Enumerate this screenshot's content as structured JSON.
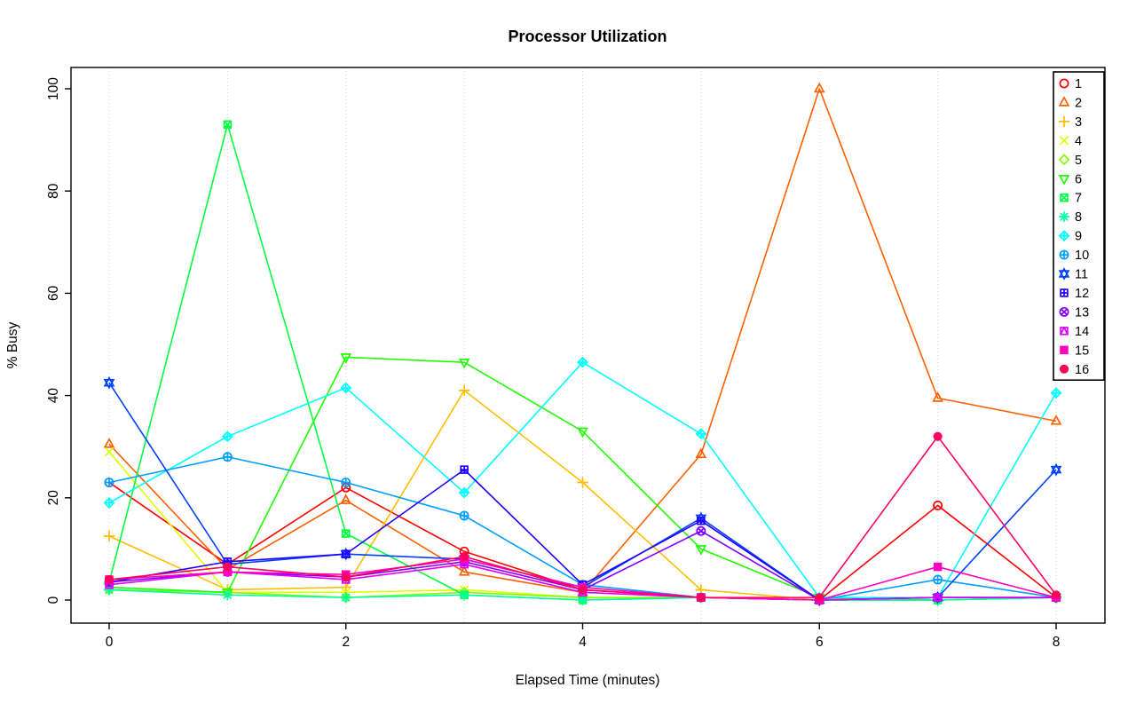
{
  "title": "Processor Utilization",
  "chart_data": {
    "type": "line",
    "title": "Processor Utilization",
    "xlabel": "Elapsed Time (minutes)",
    "ylabel": "% Busy",
    "xlim": [
      0,
      8
    ],
    "ylim": [
      0,
      100
    ],
    "xticks": [
      0,
      2,
      4,
      6,
      8
    ],
    "yticks": [
      0,
      20,
      40,
      60,
      80,
      100
    ],
    "grid": {
      "vlines": [
        0,
        1,
        2,
        3,
        4,
        5,
        6,
        7,
        8
      ],
      "color": "#d4d4d4",
      "style": "dotted"
    },
    "legend_position": "top-right",
    "axis_color": "#000000",
    "x": [
      0,
      1,
      2,
      3,
      4,
      5,
      6,
      7,
      8
    ],
    "series": [
      {
        "name": "1",
        "color": "#FF0000",
        "symbol": "circle-open",
        "values": [
          23,
          7,
          22,
          9.5,
          2,
          0.5,
          0,
          18.5,
          0.5
        ]
      },
      {
        "name": "2",
        "color": "#FF6000",
        "symbol": "triangle-open",
        "values": [
          30.5,
          6,
          19.5,
          5.5,
          1.5,
          28.5,
          100,
          39.5,
          35
        ]
      },
      {
        "name": "3",
        "color": "#FFBF00",
        "symbol": "plus",
        "values": [
          12.5,
          2,
          2.5,
          41,
          23,
          2,
          0,
          0.5,
          0.5
        ]
      },
      {
        "name": "4",
        "color": "#DFFF00",
        "symbol": "cross",
        "values": [
          29,
          1.5,
          1.5,
          2,
          0.5,
          0.5,
          0,
          0.5,
          0.5
        ]
      },
      {
        "name": "5",
        "color": "#80FF00",
        "symbol": "diamond-open",
        "values": [
          2,
          1.5,
          0.5,
          1.5,
          0.5,
          0.5,
          0,
          0,
          0.5
        ]
      },
      {
        "name": "6",
        "color": "#20FF00",
        "symbol": "triangle-down-open",
        "values": [
          2.5,
          1.5,
          47.5,
          46.5,
          33,
          10,
          0.5,
          0,
          0.5
        ]
      },
      {
        "name": "7",
        "color": "#00FF40",
        "symbol": "square-cross",
        "values": [
          3.5,
          93,
          13,
          1,
          0,
          0.5,
          0,
          0,
          0.5
        ]
      },
      {
        "name": "8",
        "color": "#00FF9F",
        "symbol": "asterisk",
        "values": [
          2,
          1,
          0.5,
          1,
          0,
          0.5,
          0,
          0,
          0.5
        ]
      },
      {
        "name": "9",
        "color": "#00FFFF",
        "symbol": "diamond-plus",
        "values": [
          19,
          32,
          41.5,
          21,
          46.5,
          32.5,
          0.5,
          0.5,
          40.5
        ]
      },
      {
        "name": "10",
        "color": "#009FFF",
        "symbol": "circle-plus",
        "values": [
          23,
          28,
          23,
          16.5,
          3,
          0.5,
          0,
          4,
          0.5
        ]
      },
      {
        "name": "11",
        "color": "#0040FF",
        "symbol": "star-david",
        "values": [
          42.5,
          7,
          9,
          8,
          2.5,
          16,
          0,
          0.5,
          25.5
        ]
      },
      {
        "name": "12",
        "color": "#2000FF",
        "symbol": "square-plus",
        "values": [
          3.5,
          7.5,
          9,
          25.5,
          3,
          15.5,
          0,
          0.5,
          0.5
        ]
      },
      {
        "name": "13",
        "color": "#8000FF",
        "symbol": "circle-cross",
        "values": [
          3.5,
          5.5,
          4.5,
          7.5,
          2,
          13.5,
          0,
          0.5,
          0.5
        ]
      },
      {
        "name": "14",
        "color": "#DF00FF",
        "symbol": "square-triangle",
        "values": [
          3,
          5.5,
          4,
          7,
          1.5,
          0.5,
          0,
          0.5,
          0.5
        ]
      },
      {
        "name": "15",
        "color": "#FF00BF",
        "symbol": "square-filled",
        "values": [
          4,
          5.5,
          5,
          8,
          2.5,
          0.5,
          0,
          6.5,
          0.5
        ]
      },
      {
        "name": "16",
        "color": "#FF0060",
        "symbol": "circle-filled",
        "values": [
          4,
          6.5,
          4.5,
          8.5,
          2,
          0.5,
          0.5,
          32,
          1
        ]
      }
    ]
  }
}
